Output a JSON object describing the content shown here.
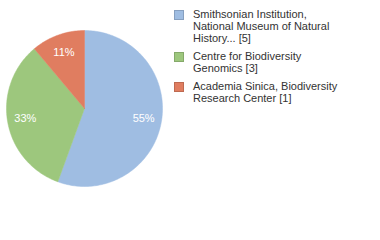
{
  "chart_data": {
    "type": "pie",
    "categories": [
      "Smithsonian Institution, National Museum of Natural History... [5]",
      "Centre for Biodiversity Genomics [3]",
      "Academia Sinica, Biodiversity Research Center [1]"
    ],
    "values": [
      55,
      33,
      11
    ],
    "value_labels": [
      "55%",
      "33%",
      "11%"
    ],
    "colors": [
      "#9fbde2",
      "#9dc77d",
      "#e07d60"
    ],
    "data_labels": true,
    "legend": "right"
  }
}
